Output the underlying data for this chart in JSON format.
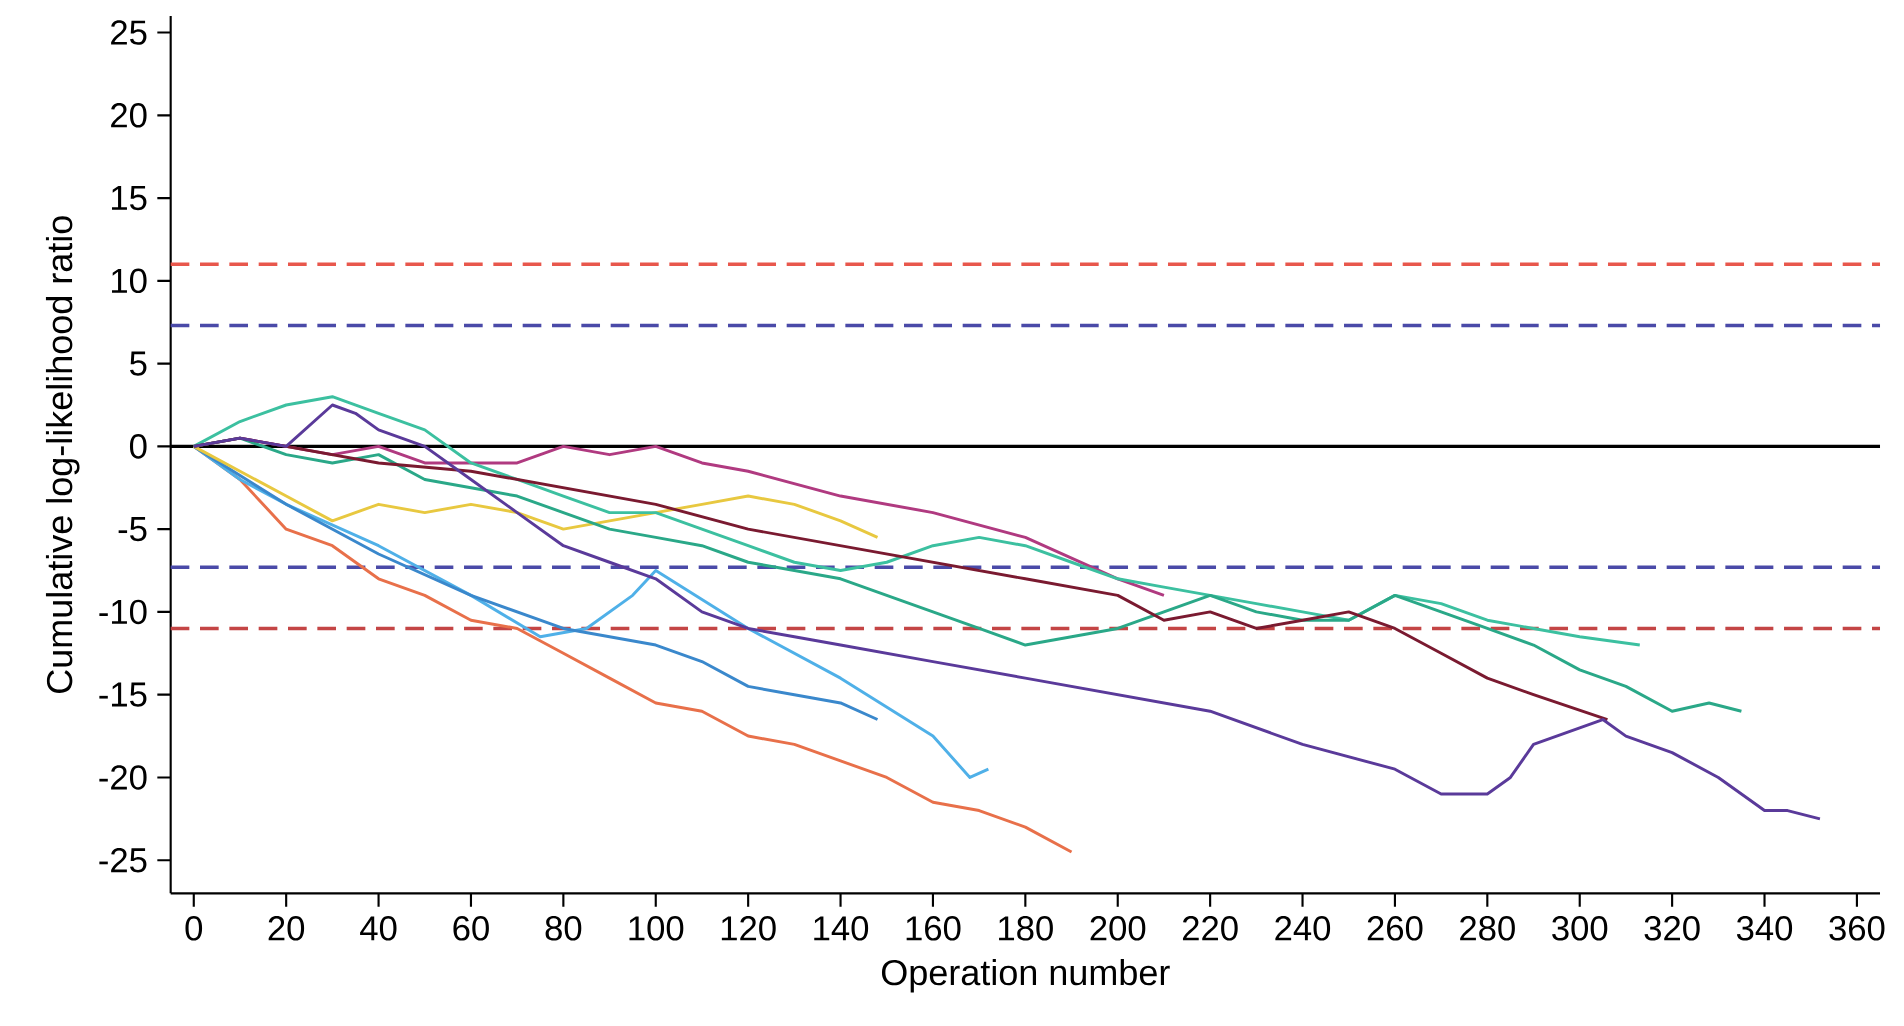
{
  "chart_data": {
    "type": "line",
    "xlabel": "Operation number",
    "ylabel": "Cumulative log-likelihood ratio",
    "xlim": [
      -5,
      365
    ],
    "ylim": [
      -27,
      26
    ],
    "xticks": [
      0,
      20,
      40,
      60,
      80,
      100,
      120,
      140,
      160,
      180,
      200,
      220,
      240,
      260,
      280,
      300,
      320,
      340,
      360
    ],
    "yticks": [
      -25,
      -20,
      -15,
      -10,
      -5,
      0,
      5,
      10,
      15,
      20,
      25
    ],
    "grid": false,
    "line_style": "solid",
    "ref_lines": [
      {
        "axis": "y",
        "value": 11,
        "color": "#e8574c",
        "line_style": "dashed"
      },
      {
        "axis": "y",
        "value": 7.3,
        "color": "#4a4aa8",
        "line_style": "dashed"
      },
      {
        "axis": "y",
        "value": 0,
        "color": "#000000",
        "line_style": "solid"
      },
      {
        "axis": "y",
        "value": -7.3,
        "color": "#4a4aa8",
        "line_style": "dashed"
      },
      {
        "axis": "y",
        "value": -11,
        "color": "#c44545",
        "line_style": "dashed"
      }
    ],
    "series": [
      {
        "color": "#e8704a",
        "x": [
          0,
          10,
          20,
          30,
          40,
          50,
          60,
          70,
          80,
          90,
          100,
          110,
          120,
          130,
          140,
          150,
          160,
          170,
          180,
          190
        ],
        "values": [
          0,
          -2,
          -5,
          -6,
          -8,
          -9,
          -10.5,
          -11,
          -12.5,
          -14,
          -15.5,
          -16,
          -17.5,
          -18,
          -19,
          -20,
          -21.5,
          -22,
          -23,
          -24.5
        ]
      },
      {
        "color": "#4fb0e8",
        "x": [
          0,
          10,
          20,
          40,
          60,
          75,
          85,
          95,
          100,
          120,
          140,
          160,
          168,
          172
        ],
        "values": [
          0,
          -2,
          -3.5,
          -6,
          -9,
          -11.5,
          -11,
          -9,
          -7.5,
          -11,
          -14,
          -17.5,
          -20,
          -19.5
        ]
      },
      {
        "color": "#3a88cc",
        "x": [
          0,
          20,
          40,
          60,
          80,
          100,
          110,
          120,
          130,
          140,
          148
        ],
        "values": [
          0,
          -3.5,
          -6.5,
          -9,
          -11,
          -12,
          -13,
          -14.5,
          -15,
          -15.5,
          -16.5
        ]
      },
      {
        "color": "#e8c840",
        "x": [
          0,
          10,
          20,
          30,
          40,
          50,
          60,
          70,
          80,
          90,
          100,
          110,
          120,
          130,
          140,
          148
        ],
        "values": [
          0,
          -1.5,
          -3,
          -4.5,
          -3.5,
          -4,
          -3.5,
          -4,
          -5,
          -4.5,
          -4,
          -3.5,
          -3,
          -3.5,
          -4.5,
          -5.5
        ]
      },
      {
        "color": "#b03a80",
        "x": [
          0,
          10,
          20,
          30,
          40,
          50,
          60,
          70,
          80,
          90,
          100,
          110,
          120,
          140,
          160,
          180,
          200,
          210
        ],
        "values": [
          0,
          0.5,
          0,
          -0.5,
          0,
          -1,
          -1,
          -1,
          0,
          -0.5,
          0,
          -1,
          -1.5,
          -3,
          -4,
          -5.5,
          -8,
          -9
        ]
      },
      {
        "color": "#3cc0a0",
        "x": [
          0,
          10,
          20,
          30,
          40,
          50,
          60,
          70,
          80,
          90,
          100,
          110,
          120,
          130,
          140,
          150,
          160,
          170,
          180,
          190,
          200,
          210,
          220,
          230,
          240,
          250,
          260,
          270,
          280,
          290,
          300,
          313
        ],
        "values": [
          0,
          1.5,
          2.5,
          3,
          2,
          1,
          -1,
          -2,
          -3,
          -4,
          -4,
          -5,
          -6,
          -7,
          -7.5,
          -7,
          -6,
          -5.5,
          -6,
          -7,
          -8,
          -8.5,
          -9,
          -9.5,
          -10,
          -10.5,
          -9,
          -9.5,
          -10.5,
          -11,
          -11.5,
          -12
        ]
      },
      {
        "color": "#2aa888",
        "x": [
          0,
          10,
          20,
          30,
          40,
          50,
          60,
          70,
          80,
          90,
          100,
          110,
          120,
          130,
          140,
          150,
          160,
          170,
          180,
          190,
          200,
          210,
          220,
          230,
          240,
          250,
          260,
          270,
          280,
          290,
          300,
          310,
          320,
          328,
          335
        ],
        "values": [
          0,
          0.5,
          -0.5,
          -1,
          -0.5,
          -2,
          -2.5,
          -3,
          -4,
          -5,
          -5.5,
          -6,
          -7,
          -7.5,
          -8,
          -9,
          -10,
          -11,
          -12,
          -11.5,
          -11,
          -10,
          -9,
          -10,
          -10.5,
          -10.5,
          -9,
          -10,
          -11,
          -12,
          -13.5,
          -14.5,
          -16,
          -15.5,
          -16
        ]
      },
      {
        "color": "#7a1a30",
        "x": [
          0,
          10,
          20,
          40,
          60,
          80,
          100,
          120,
          140,
          160,
          180,
          200,
          210,
          220,
          230,
          240,
          250,
          260,
          270,
          280,
          290,
          306
        ],
        "values": [
          0,
          0.5,
          0,
          -1,
          -1.5,
          -2.5,
          -3.5,
          -5,
          -6,
          -7,
          -8,
          -9,
          -10.5,
          -10,
          -11,
          -10.5,
          -10,
          -11,
          -12.5,
          -14,
          -15,
          -16.5
        ]
      },
      {
        "color": "#5a3a9a",
        "x": [
          0,
          10,
          20,
          30,
          35,
          40,
          50,
          60,
          70,
          80,
          90,
          100,
          110,
          120,
          130,
          140,
          160,
          180,
          200,
          220,
          240,
          260,
          270,
          280,
          285,
          290,
          300,
          305,
          310,
          320,
          330,
          340,
          345,
          352
        ],
        "values": [
          0,
          0.5,
          0,
          2.5,
          2,
          1,
          0,
          -2,
          -4,
          -6,
          -7,
          -8,
          -10,
          -11,
          -11.5,
          -12,
          -13,
          -14,
          -15,
          -16,
          -18,
          -19.5,
          -21,
          -21,
          -20,
          -18,
          -17,
          -16.5,
          -17.5,
          -18.5,
          -20,
          -22,
          -22,
          -22.5
        ]
      }
    ]
  }
}
